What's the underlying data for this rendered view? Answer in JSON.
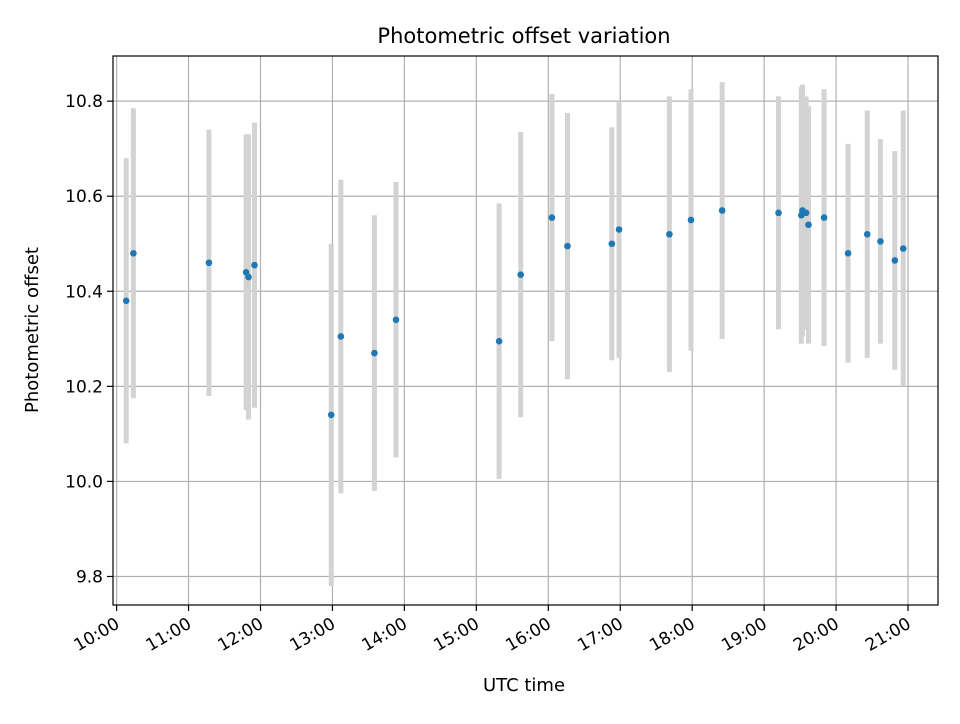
{
  "chart_data": {
    "type": "scatter",
    "title": "Photometric offset variation",
    "xlabel": "UTC time",
    "ylabel": "Photometric offset",
    "x_tick_labels": [
      "10:00",
      "11:00",
      "12:00",
      "13:00",
      "14:00",
      "15:00",
      "16:00",
      "17:00",
      "18:00",
      "19:00",
      "20:00",
      "21:00"
    ],
    "y_tick_labels": [
      "9.8",
      "10.0",
      "10.2",
      "10.4",
      "10.6",
      "10.8"
    ],
    "y_ticks": [
      9.8,
      10.0,
      10.2,
      10.4,
      10.6,
      10.8
    ],
    "x_tick_hours": [
      10,
      11,
      12,
      13,
      14,
      15,
      16,
      17,
      18,
      19,
      20,
      21
    ],
    "xlim": [
      "09:57",
      "21:25"
    ],
    "ylim": [
      9.74,
      10.895
    ],
    "grid": true,
    "series": [
      {
        "marker_color": "#1f77b4",
        "errorbar_color": "#d3d3d3",
        "points": [
          {
            "x": "10:08",
            "y": 10.38,
            "yerr": 0.3
          },
          {
            "x": "10:14",
            "y": 10.48,
            "yerr": 0.305
          },
          {
            "x": "11:17",
            "y": 10.46,
            "yerr": 0.28
          },
          {
            "x": "11:48",
            "y": 10.44,
            "yerr": 0.29
          },
          {
            "x": "11:50",
            "y": 10.43,
            "yerr": 0.3
          },
          {
            "x": "11:55",
            "y": 10.455,
            "yerr": 0.3
          },
          {
            "x": "12:59",
            "y": 10.14,
            "yerr": 0.36
          },
          {
            "x": "13:07",
            "y": 10.305,
            "yerr": 0.33
          },
          {
            "x": "13:35",
            "y": 10.27,
            "yerr": 0.29
          },
          {
            "x": "13:53",
            "y": 10.34,
            "yerr": 0.29
          },
          {
            "x": "15:19",
            "y": 10.295,
            "yerr": 0.29
          },
          {
            "x": "15:37",
            "y": 10.435,
            "yerr": 0.3
          },
          {
            "x": "16:03",
            "y": 10.555,
            "yerr": 0.26
          },
          {
            "x": "16:16",
            "y": 10.495,
            "yerr": 0.28
          },
          {
            "x": "16:53",
            "y": 10.5,
            "yerr": 0.245
          },
          {
            "x": "16:59",
            "y": 10.53,
            "yerr": 0.27
          },
          {
            "x": "17:41",
            "y": 10.52,
            "yerr": 0.29
          },
          {
            "x": "17:59",
            "y": 10.55,
            "yerr": 0.275
          },
          {
            "x": "18:25",
            "y": 10.57,
            "yerr": 0.27
          },
          {
            "x": "19:12",
            "y": 10.565,
            "yerr": 0.245
          },
          {
            "x": "19:31",
            "y": 10.56,
            "yerr": 0.27
          },
          {
            "x": "19:32",
            "y": 10.57,
            "yerr": 0.265
          },
          {
            "x": "19:35",
            "y": 10.565,
            "yerr": 0.245
          },
          {
            "x": "19:37",
            "y": 10.54,
            "yerr": 0.25
          },
          {
            "x": "19:50",
            "y": 10.555,
            "yerr": 0.27
          },
          {
            "x": "20:10",
            "y": 10.48,
            "yerr": 0.23
          },
          {
            "x": "20:26",
            "y": 10.52,
            "yerr": 0.26
          },
          {
            "x": "20:37",
            "y": 10.505,
            "yerr": 0.215
          },
          {
            "x": "20:49",
            "y": 10.465,
            "yerr": 0.23
          },
          {
            "x": "20:56",
            "y": 10.49,
            "yerr": 0.29
          }
        ]
      }
    ]
  }
}
